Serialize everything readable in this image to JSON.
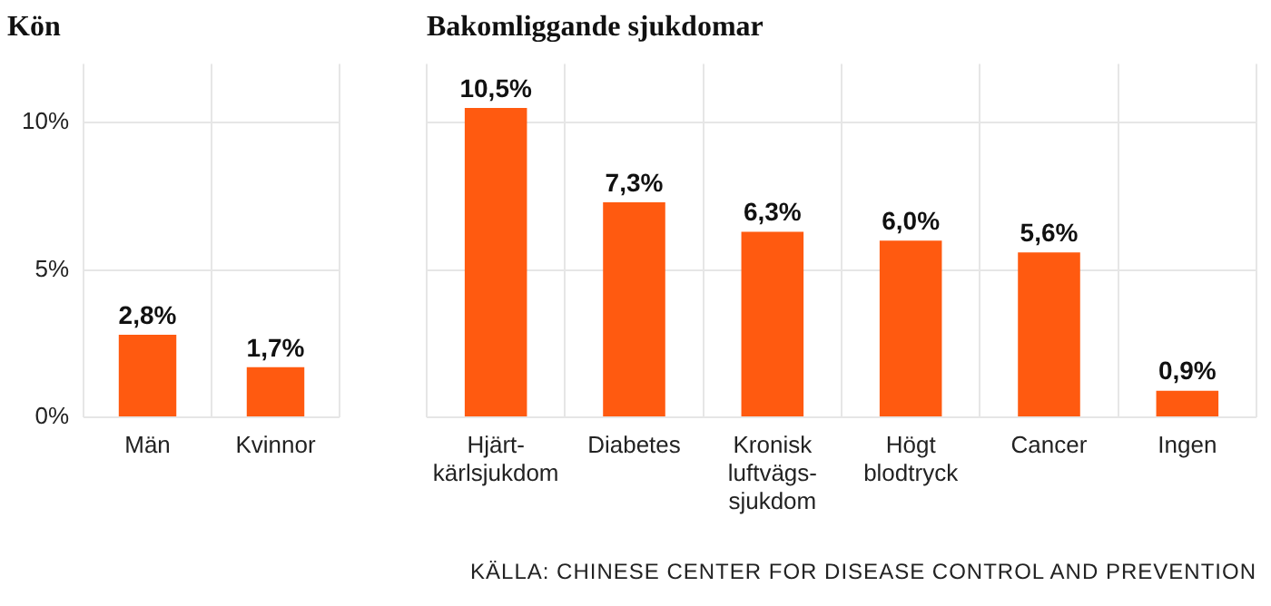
{
  "chart_data": [
    {
      "type": "bar",
      "title": "Kön",
      "categories": [
        "Män",
        "Kvinnor"
      ],
      "values": [
        2.8,
        1.7
      ],
      "value_labels": [
        "2,8%",
        "1,7%"
      ],
      "color": "#ff5a10",
      "ylim": [
        0,
        12
      ],
      "yticks": [
        {
          "value": 0,
          "label": "0%"
        },
        {
          "value": 5,
          "label": "5%"
        },
        {
          "value": 10,
          "label": "10%"
        }
      ],
      "grid": true,
      "legend": false
    },
    {
      "type": "bar",
      "title": "Bakomliggande sjukdomar",
      "categories": [
        "Hjärt-\nkärlsjukdom",
        "Diabetes",
        "Kronisk\nluftvägs-\nsjukdom",
        "Högt\nblodtryck",
        "Cancer",
        "Ingen"
      ],
      "values": [
        10.5,
        7.3,
        6.3,
        6.0,
        5.6,
        0.9
      ],
      "value_labels": [
        "10,5%",
        "7,3%",
        "6,3%",
        "6,0%",
        "5,6%",
        "0,9%"
      ],
      "color": "#ff5a10",
      "ylim": [
        0,
        12
      ],
      "yticks": [
        0,
        5,
        10
      ],
      "grid": true,
      "legend": false,
      "tick_labels": "x",
      "annotations": [
        "KÄLLA: CHINESE CENTER FOR DISEASE CONTROL AND PREVENTION"
      ]
    }
  ]
}
